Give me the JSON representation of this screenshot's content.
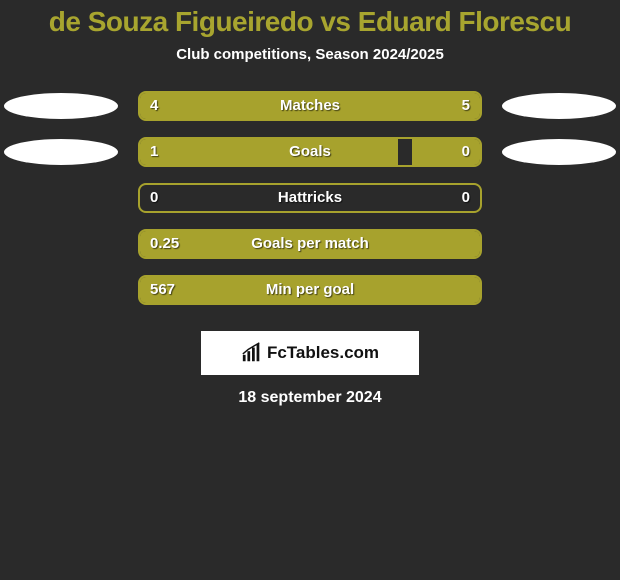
{
  "title": "de Souza Figueiredo vs Eduard Florescu",
  "subtitle": "Club competitions, Season 2024/2025",
  "date": "18 september 2024",
  "brand": "FcTables.com",
  "brand_icon_color": "#111111",
  "background_color": "#2a2a2a",
  "accent_color": "#a7a22d",
  "title_color": "#a8a52f",
  "text_color": "#ffffff",
  "ellipse_left_color": "#ffffff",
  "ellipse_right_color": "#ffffff",
  "bar_track_width": 344,
  "stats": [
    {
      "label": "Matches",
      "left_value": "4",
      "right_value": "5",
      "left_pct": 44,
      "right_pct": 56,
      "show_ellipses": true
    },
    {
      "label": "Goals",
      "left_value": "1",
      "right_value": "0",
      "left_pct": 76,
      "right_pct": 20,
      "show_ellipses": true
    },
    {
      "label": "Hattricks",
      "left_value": "0",
      "right_value": "0",
      "left_pct": 0,
      "right_pct": 0,
      "show_ellipses": false
    },
    {
      "label": "Goals per match",
      "left_value": "0.25",
      "right_value": "",
      "left_pct": 100,
      "right_pct": 0,
      "show_ellipses": false
    },
    {
      "label": "Min per goal",
      "left_value": "567",
      "right_value": "",
      "left_pct": 100,
      "right_pct": 0,
      "show_ellipses": false
    }
  ]
}
